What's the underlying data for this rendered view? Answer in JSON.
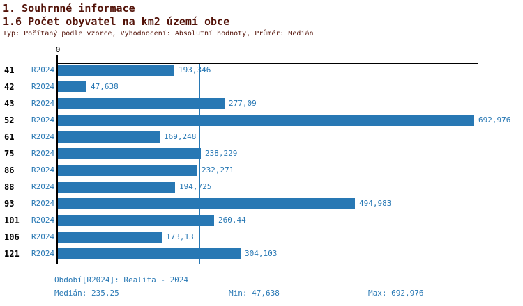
{
  "header": {
    "title_line1": "1. Souhrnné informace",
    "title_line2": "1.6 Počet obyvatel na km2 území obce",
    "meta_line": "Typ: Počítaný podle vzorce, Vyhodnocení: Absolutní hodnoty, Průměr: Medián"
  },
  "chart_data": {
    "type": "bar",
    "orientation": "horizontal",
    "title": "1.6 Počet obyvatel na km2 území obce",
    "origin_tick_label": "0",
    "xlim": [
      0,
      700
    ],
    "grid": false,
    "median_value": 235.25,
    "series_period": "R2024",
    "categories": [
      "41",
      "42",
      "43",
      "52",
      "61",
      "75",
      "86",
      "88",
      "93",
      "101",
      "106",
      "121"
    ],
    "values": [
      193.346,
      47.638,
      277.09,
      692.976,
      169.248,
      238.229,
      232.271,
      194.725,
      494.983,
      260.44,
      173.13,
      304.103
    ],
    "rows": [
      {
        "id": "41",
        "period": "R2024",
        "value": 193.346,
        "value_label": "193,346"
      },
      {
        "id": "42",
        "period": "R2024",
        "value": 47.638,
        "value_label": "47,638"
      },
      {
        "id": "43",
        "period": "R2024",
        "value": 277.09,
        "value_label": "277,09"
      },
      {
        "id": "52",
        "period": "R2024",
        "value": 692.976,
        "value_label": "692,976"
      },
      {
        "id": "61",
        "period": "R2024",
        "value": 169.248,
        "value_label": "169,248"
      },
      {
        "id": "75",
        "period": "R2024",
        "value": 238.229,
        "value_label": "238,229"
      },
      {
        "id": "86",
        "period": "R2024",
        "value": 232.271,
        "value_label": "232,271"
      },
      {
        "id": "88",
        "period": "R2024",
        "value": 194.725,
        "value_label": "194,725"
      },
      {
        "id": "93",
        "period": "R2024",
        "value": 494.983,
        "value_label": "494,983"
      },
      {
        "id": "101",
        "period": "R2024",
        "value": 260.44,
        "value_label": "260,44"
      },
      {
        "id": "106",
        "period": "R2024",
        "value": 173.13,
        "value_label": "173,13"
      },
      {
        "id": "121",
        "period": "R2024",
        "value": 304.103,
        "value_label": "304,103"
      }
    ],
    "colors": {
      "bar": "#2878b4",
      "text_blue": "#2878b4",
      "header_red": "#531309",
      "axis": "#000000",
      "background": "#ffffff"
    }
  },
  "footer": {
    "period_note": "Období[R2024]: Realita - 2024",
    "median": "Medián: 235,25",
    "min": "Min: 47,638",
    "max": "Max: 692,976"
  }
}
